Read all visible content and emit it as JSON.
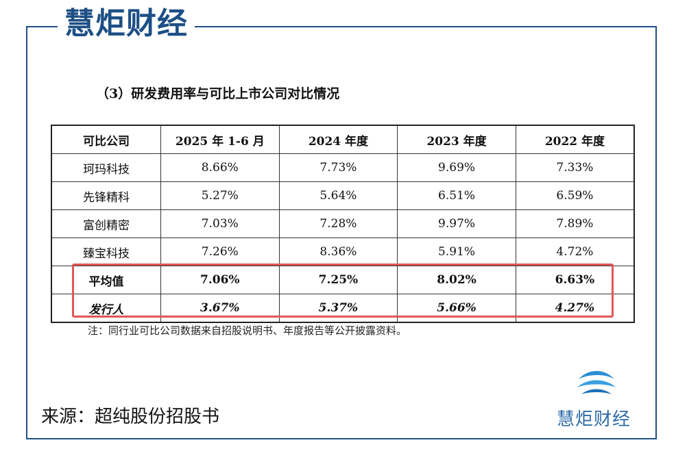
{
  "brand": {
    "name": "慧炬财经"
  },
  "section_title": "（3）研发费用率与可比上市公司对比情况",
  "table": {
    "headers": [
      "可比公司",
      "2025 年 1-6 月",
      "2024 年度",
      "2023 年度",
      "2022 年度"
    ],
    "rows": [
      [
        "珂玛科技",
        "8.66%",
        "7.73%",
        "9.69%",
        "7.33%"
      ],
      [
        "先锋精科",
        "5.27%",
        "5.64%",
        "6.51%",
        "6.59%"
      ],
      [
        "富创精密",
        "7.03%",
        "7.28%",
        "9.97%",
        "7.89%"
      ],
      [
        "臻宝科技",
        "7.26%",
        "8.36%",
        "5.91%",
        "4.72%"
      ]
    ],
    "average": [
      "平均值",
      "7.06%",
      "7.25%",
      "8.02%",
      "6.63%"
    ],
    "issuer": [
      "发行人",
      "3.67%",
      "5.37%",
      "5.66%",
      "4.27%"
    ]
  },
  "note": "注：同行业可比公司数据来自招股说明书、年度报告等公开披露资料。",
  "source": "来源：超纯股份招股书",
  "colors": {
    "frame": "#1d4f86",
    "highlight": "#e25656",
    "brand": "#2b6aa8"
  }
}
